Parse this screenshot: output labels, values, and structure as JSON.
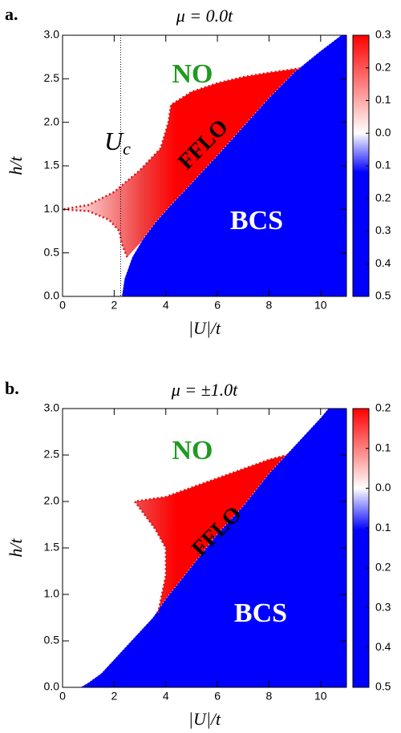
{
  "chart_data": [
    {
      "type": "phase",
      "panel_label": "a.",
      "title": "μ = 0.0t",
      "x_label": "|U|/t",
      "y_label": "h/t",
      "xlim": [
        0,
        11
      ],
      "xticks": [
        0,
        2,
        4,
        6,
        8,
        10
      ],
      "ylim": [
        0,
        3
      ],
      "yticks": [
        {
          "value": 0,
          "label": "0.0"
        },
        {
          "value": 0.5,
          "label": "0.5"
        },
        {
          "value": 1,
          "label": "1.0"
        },
        {
          "value": 1.5,
          "label": "1.5"
        },
        {
          "value": 2,
          "label": "2.0"
        },
        {
          "value": 2.5,
          "label": "2.5"
        },
        {
          "value": 3,
          "label": "3.0"
        }
      ],
      "clim": [
        -0.5,
        0.3
      ],
      "cticks": [
        {
          "value": 0.3,
          "label": "0.3"
        },
        {
          "value": 0.2,
          "label": "0.2"
        },
        {
          "value": 0.1,
          "label": "0.1"
        },
        {
          "value": 0,
          "label": "0.0"
        },
        {
          "value": -0.1,
          "label": "0.1"
        },
        {
          "value": -0.2,
          "label": "0.2"
        },
        {
          "value": -0.3,
          "label": "0.3"
        },
        {
          "value": -0.4,
          "label": "0.4"
        },
        {
          "value": -0.5,
          "label": "0.5"
        }
      ],
      "bcs_boundary": {
        "x": [
          2.3,
          2.4,
          2.7,
          3.1,
          3.6,
          4.2,
          5,
          6,
          7,
          8,
          9,
          10,
          10.8
        ],
        "y": [
          0,
          0.2,
          0.45,
          0.65,
          0.85,
          1.05,
          1.3,
          1.62,
          1.95,
          2.28,
          2.58,
          2.82,
          3
        ]
      },
      "fflo_boundary": {
        "x": [
          2.5,
          2.3,
          2.2,
          1.8,
          1,
          0,
          1,
          2,
          3,
          3.8,
          4.1,
          4.2,
          5,
          6,
          7,
          8,
          9.2
        ],
        "y": [
          0.45,
          0.6,
          0.75,
          0.88,
          0.98,
          1,
          1.05,
          1.2,
          1.45,
          1.7,
          2,
          2.2,
          2.35,
          2.45,
          2.52,
          2.57,
          2.62
        ]
      },
      "uc_line": {
        "x": 2.25,
        "label": [
          "U",
          "c"
        ]
      },
      "regions": [
        "NO",
        "FFLO",
        "BCS"
      ]
    },
    {
      "type": "phase",
      "panel_label": "b.",
      "title": "μ = ±1.0t",
      "x_label": "|U|/t",
      "y_label": "h/t",
      "xlim": [
        0,
        11
      ],
      "xticks": [
        0,
        2,
        4,
        6,
        8,
        10
      ],
      "ylim": [
        0,
        3
      ],
      "yticks": [
        {
          "value": 0,
          "label": "0.0"
        },
        {
          "value": 0.5,
          "label": "0.5"
        },
        {
          "value": 1,
          "label": "1.0"
        },
        {
          "value": 1.5,
          "label": "1.5"
        },
        {
          "value": 2,
          "label": "2.0"
        },
        {
          "value": 2.5,
          "label": "2.5"
        },
        {
          "value": 3,
          "label": "3.0"
        }
      ],
      "clim": [
        -0.5,
        0.2
      ],
      "cticks": [
        {
          "value": 0.2,
          "label": "0.2"
        },
        {
          "value": 0.1,
          "label": "0.1"
        },
        {
          "value": 0,
          "label": "0.0"
        },
        {
          "value": -0.1,
          "label": "0.1"
        },
        {
          "value": -0.2,
          "label": "0.2"
        },
        {
          "value": -0.3,
          "label": "0.3"
        },
        {
          "value": -0.4,
          "label": "0.4"
        },
        {
          "value": -0.5,
          "label": "0.5"
        }
      ],
      "bcs_boundary": {
        "x": [
          0.7,
          1,
          1.5,
          2,
          2.5,
          3,
          3.5,
          4,
          5,
          6,
          7,
          8,
          9,
          10,
          10.3
        ],
        "y": [
          0,
          0.05,
          0.15,
          0.3,
          0.45,
          0.6,
          0.75,
          0.95,
          1.3,
          1.65,
          1.95,
          2.3,
          2.6,
          2.9,
          3
        ]
      },
      "fflo_boundary": {
        "x": [
          3.7,
          4,
          4,
          3.6,
          2.8,
          4,
          5,
          6,
          7,
          8,
          8.7
        ],
        "y": [
          0.8,
          1.2,
          1.5,
          1.7,
          2,
          2.05,
          2.15,
          2.25,
          2.35,
          2.45,
          2.5
        ]
      },
      "regions": [
        "NO",
        "FFLO",
        "BCS"
      ]
    }
  ]
}
